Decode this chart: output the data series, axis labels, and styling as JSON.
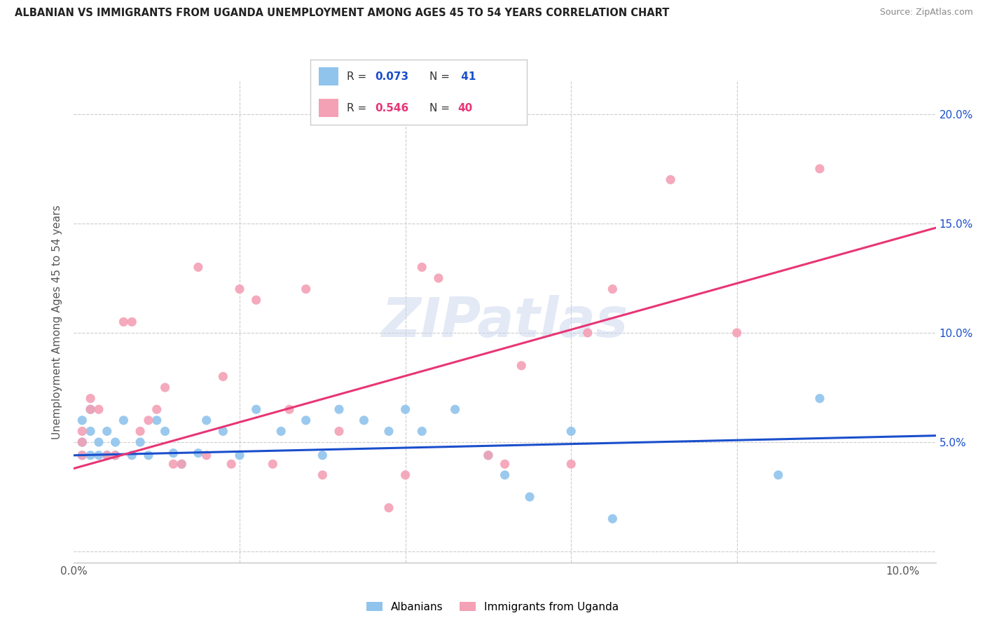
{
  "title": "ALBANIAN VS IMMIGRANTS FROM UGANDA UNEMPLOYMENT AMONG AGES 45 TO 54 YEARS CORRELATION CHART",
  "source": "Source: ZipAtlas.com",
  "ylabel": "Unemployment Among Ages 45 to 54 years",
  "xlim": [
    0.0,
    0.104
  ],
  "ylim": [
    -0.005,
    0.215
  ],
  "albanians_color": "#90C4ED",
  "uganda_color": "#F4A0B5",
  "trendline_blue": "#1A4FCC",
  "trendline_pink": "#E83575",
  "watermark": "ZIPatlas",
  "albanians_R": "0.073",
  "albanians_N": "41",
  "uganda_R": "0.546",
  "uganda_N": "40",
  "alb_trend_x0": 0.0,
  "alb_trend_y0": 0.044,
  "alb_trend_x1": 0.104,
  "alb_trend_y1": 0.053,
  "uga_trend_x0": 0.0,
  "uga_trend_y0": 0.038,
  "uga_trend_x1": 0.104,
  "uga_trend_y1": 0.148,
  "albanians_x": [
    0.001,
    0.001,
    0.001,
    0.002,
    0.002,
    0.002,
    0.003,
    0.003,
    0.004,
    0.004,
    0.005,
    0.005,
    0.006,
    0.007,
    0.008,
    0.009,
    0.01,
    0.011,
    0.012,
    0.013,
    0.015,
    0.016,
    0.018,
    0.02,
    0.022,
    0.025,
    0.028,
    0.03,
    0.032,
    0.035,
    0.038,
    0.04,
    0.042,
    0.046,
    0.05,
    0.052,
    0.055,
    0.06,
    0.065,
    0.085,
    0.09
  ],
  "albanians_y": [
    0.044,
    0.05,
    0.06,
    0.044,
    0.055,
    0.065,
    0.044,
    0.05,
    0.044,
    0.055,
    0.044,
    0.05,
    0.06,
    0.044,
    0.05,
    0.044,
    0.06,
    0.055,
    0.045,
    0.04,
    0.045,
    0.06,
    0.055,
    0.044,
    0.065,
    0.055,
    0.06,
    0.044,
    0.065,
    0.06,
    0.055,
    0.065,
    0.055,
    0.065,
    0.044,
    0.035,
    0.025,
    0.055,
    0.015,
    0.035,
    0.07
  ],
  "uganda_x": [
    0.001,
    0.001,
    0.001,
    0.002,
    0.002,
    0.003,
    0.004,
    0.005,
    0.006,
    0.007,
    0.008,
    0.009,
    0.01,
    0.011,
    0.012,
    0.013,
    0.015,
    0.016,
    0.018,
    0.019,
    0.02,
    0.022,
    0.024,
    0.026,
    0.028,
    0.03,
    0.032,
    0.038,
    0.04,
    0.042,
    0.044,
    0.05,
    0.052,
    0.054,
    0.06,
    0.062,
    0.065,
    0.072,
    0.08,
    0.09
  ],
  "uganda_y": [
    0.044,
    0.05,
    0.055,
    0.065,
    0.07,
    0.065,
    0.044,
    0.044,
    0.105,
    0.105,
    0.055,
    0.06,
    0.065,
    0.075,
    0.04,
    0.04,
    0.13,
    0.044,
    0.08,
    0.04,
    0.12,
    0.115,
    0.04,
    0.065,
    0.12,
    0.035,
    0.055,
    0.02,
    0.035,
    0.13,
    0.125,
    0.044,
    0.04,
    0.085,
    0.04,
    0.1,
    0.12,
    0.17,
    0.1,
    0.175
  ]
}
